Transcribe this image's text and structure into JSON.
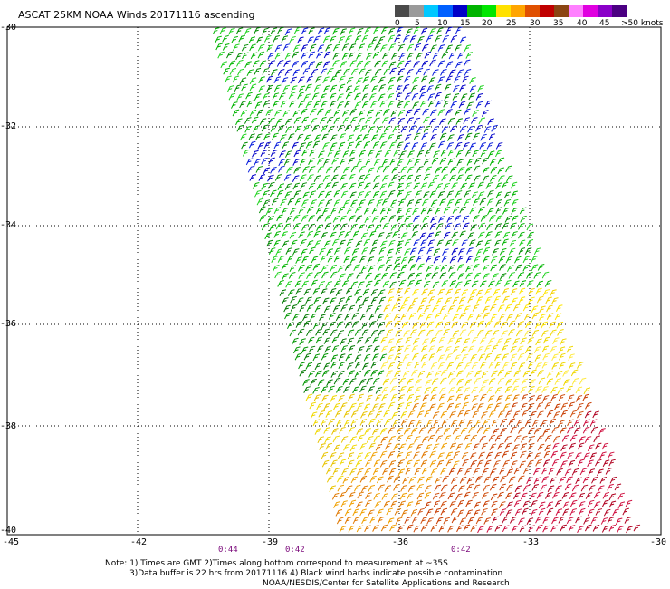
{
  "title": "ASCAT 25KM NOAA Winds 20171116 ascending",
  "legend": {
    "colors": [
      "#4a4a4a",
      "#9a9a9a",
      "#00c8ff",
      "#0060ff",
      "#0000c8",
      "#00b400",
      "#00e600",
      "#ffe100",
      "#ffa500",
      "#e05000",
      "#c00000",
      "#8b4513",
      "#ff80ff",
      "#e000e0",
      "#8a00c8",
      "#4b0082"
    ],
    "labels": [
      "0",
      "5",
      "10",
      "15",
      "20",
      "25",
      "30",
      "35",
      "40",
      "45",
      ">50 knots"
    ]
  },
  "axes": {
    "lat_labels": [
      "-30",
      "-32",
      "-34",
      "-36",
      "-38",
      "-40"
    ],
    "lon_labels": [
      "-45",
      "-42",
      "-39",
      "-36",
      "-33",
      "-30"
    ]
  },
  "pass_times": [
    "0:44",
    "0:42",
    "0:42"
  ],
  "notes": {
    "line1": "Note: 1) Times are GMT 2)Times along bottom correspond to measurement at ~35S",
    "line2": "3)Data buffer is 22 hrs from 20171116 4) Black wind barbs indicate possible contamination",
    "line3": "NOAA/NESDIS/Center for Satellite Applications and Research"
  }
}
